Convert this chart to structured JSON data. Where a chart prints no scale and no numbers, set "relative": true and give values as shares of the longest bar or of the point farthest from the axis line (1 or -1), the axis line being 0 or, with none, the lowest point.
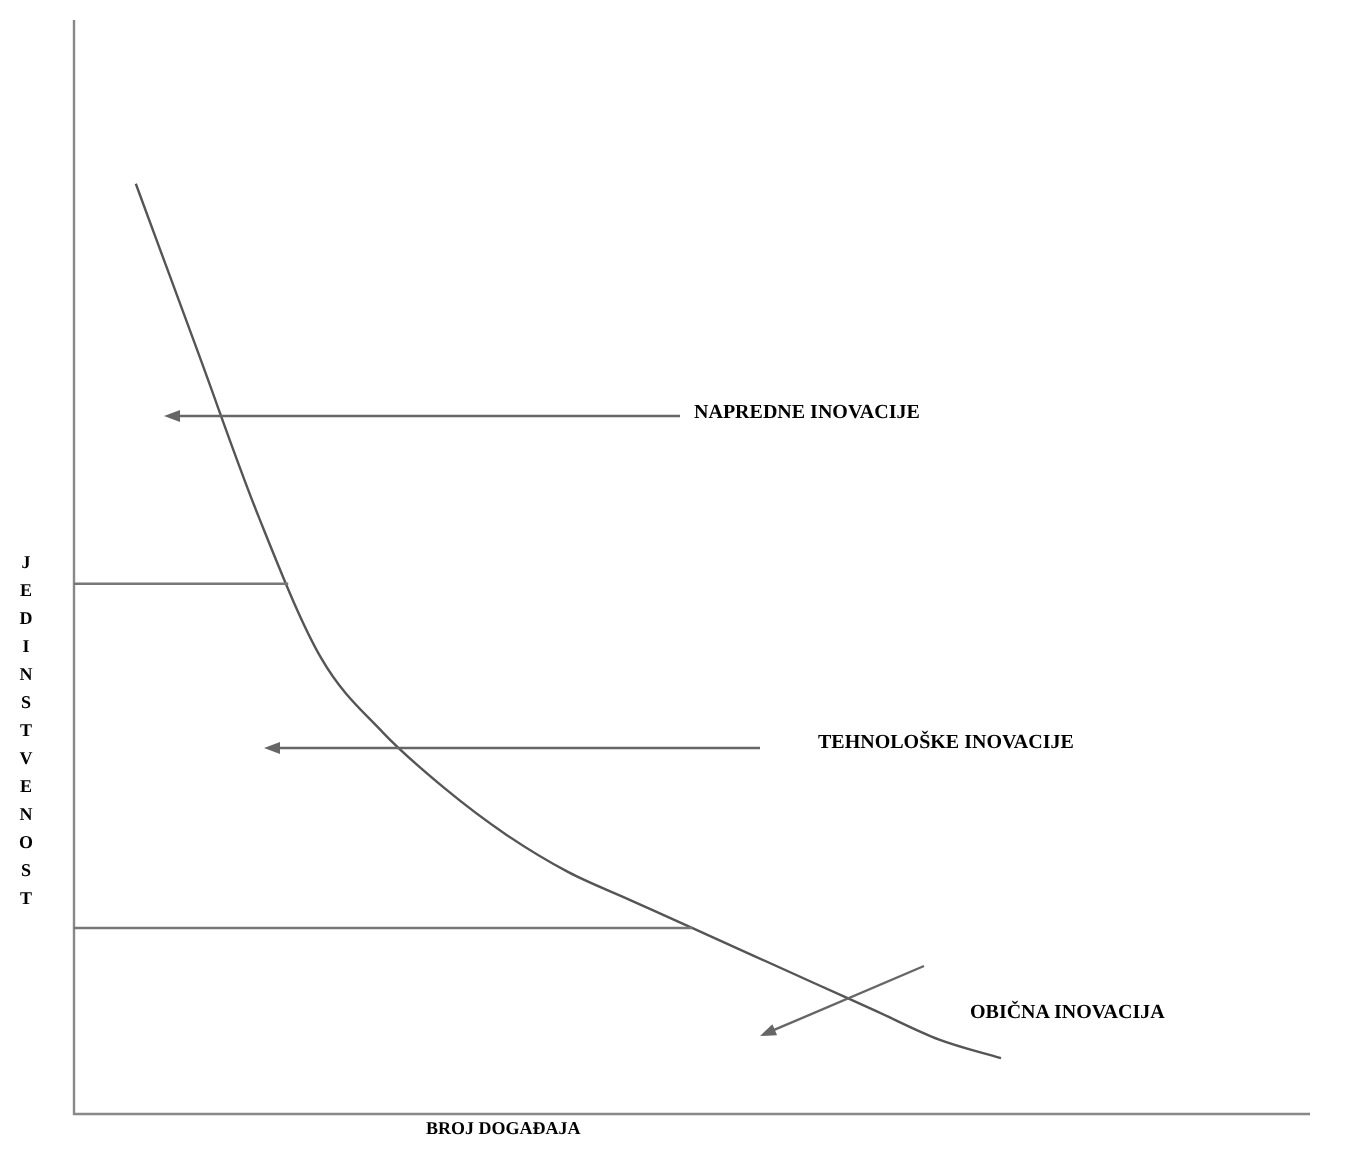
{
  "chart_data": {
    "type": "line",
    "relative": true,
    "xlabel": "BROJ DOGAĐAJA",
    "ylabel": "JEDINSTVENOST",
    "categories": [
      null,
      null,
      null,
      null,
      null,
      null,
      null,
      null,
      null,
      null,
      null,
      null,
      null,
      null,
      null,
      null,
      null,
      null,
      null,
      null,
      null
    ],
    "series": [
      {
        "color": "#555555",
        "values": [
          null,
          1,
          0.82,
          0.64,
          0.49,
          0.41,
          0.35,
          0.3,
          0.26,
          0.23,
          0.2,
          0.17,
          0.14,
          0.11,
          0.08,
          0.06,
          null,
          null,
          null,
          null,
          null
        ]
      }
    ],
    "ref_lines": [
      {
        "axis": "y",
        "value": 0.57,
        "color": "#777777"
      },
      {
        "axis": "y",
        "value": 0.2,
        "color": "#777777"
      }
    ],
    "annotations": [
      "NAPREDNE INOVACIJE",
      "TEHNOLOŠKE INOVACIJE",
      "OBIČNA INOVACIJA"
    ],
    "legend": false,
    "marker": "none"
  }
}
